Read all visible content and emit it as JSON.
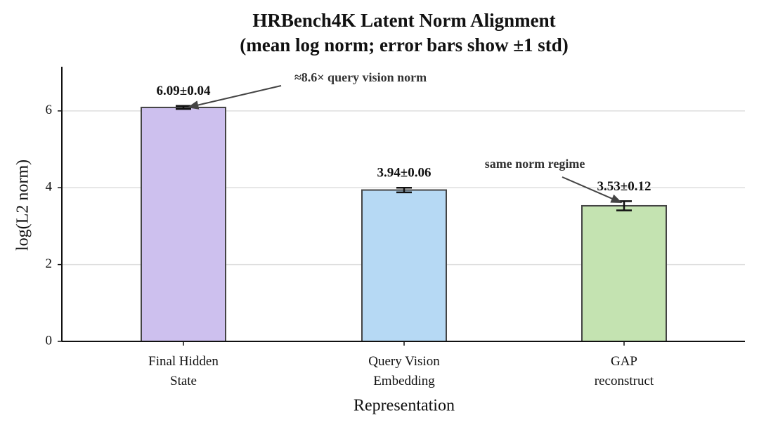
{
  "chart_data": {
    "type": "bar",
    "title": "HRBench4K Latent Norm Alignment",
    "subtitle": "(mean log norm; error bars show ±1 std)",
    "x_label": "Representation",
    "y_label": "log(L2 norm)",
    "categories": [
      "Final Hidden\nState",
      "Query Vision\nEmbedding",
      "GAP\nreconstruct"
    ],
    "values": [
      6.09,
      3.94,
      3.53
    ],
    "errors": [
      0.04,
      0.06,
      0.12
    ],
    "value_labels": [
      "6.09±0.04",
      "3.94±0.06",
      "3.53±0.12"
    ],
    "colors": [
      "#cdc0ee",
      "#b6d9f4",
      "#c4e3b1"
    ],
    "ylim": [
      0,
      7.15
    ],
    "yticks": [
      0,
      2,
      4,
      6
    ],
    "grid": true,
    "annotations": [
      {
        "text": "≈8.6× query vision norm",
        "category": 0
      },
      {
        "text": "same norm regime",
        "category": 2
      }
    ]
  }
}
